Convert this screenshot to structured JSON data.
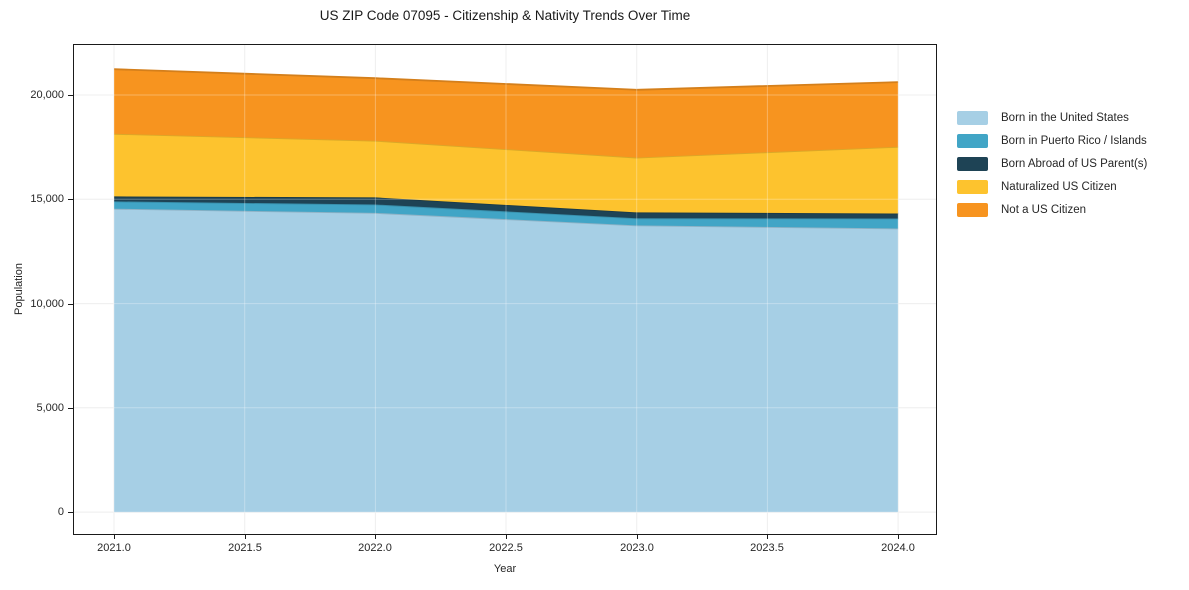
{
  "title": "US ZIP Code 07095 - Citizenship & Nativity Trends Over Time",
  "chart_data": {
    "type": "area",
    "stacked": true,
    "title": "US ZIP Code 07095 - Citizenship & Nativity Trends Over Time",
    "xlabel": "Year",
    "ylabel": "Population",
    "x": [
      2021,
      2022,
      2023,
      2024
    ],
    "x_tick_values": [
      2021.0,
      2021.5,
      2022.0,
      2022.5,
      2023.0,
      2023.5,
      2024.0
    ],
    "x_tick_labels": [
      "2021.0",
      "2021.5",
      "2022.0",
      "2022.5",
      "2023.0",
      "2023.5",
      "2024.0"
    ],
    "y_tick_values": [
      0,
      5000,
      10000,
      15000,
      20000
    ],
    "y_tick_labels": [
      "0",
      "5,000",
      "10,000",
      "15,000",
      "20,000"
    ],
    "xlim": [
      2020.847,
      2024.145
    ],
    "ylim": [
      -1050,
      22400
    ],
    "grid": true,
    "grid_color": "#e9e9e9",
    "legend_position": "right-outside",
    "series": [
      {
        "name": "Born in the United States",
        "color": "#a6cfe5",
        "values": [
          14550,
          14350,
          13750,
          13600
        ]
      },
      {
        "name": "Born in Puerto Rico / Islands",
        "color": "#41a5c6",
        "values": [
          350,
          400,
          340,
          480
        ]
      },
      {
        "name": "Born Abroad of US Parent(s)",
        "color": "#1e4355",
        "values": [
          240,
          340,
          280,
          240
        ]
      },
      {
        "name": "Naturalized US Citizen",
        "color": "#fdc32e",
        "values": [
          3000,
          2720,
          2630,
          3200
        ]
      },
      {
        "name": "Not a US Citizen",
        "color": "#f7941f",
        "values": [
          3100,
          3000,
          3250,
          3100
        ]
      }
    ],
    "stacked_totals": [
      21240,
      20810,
      20250,
      20620
    ]
  }
}
